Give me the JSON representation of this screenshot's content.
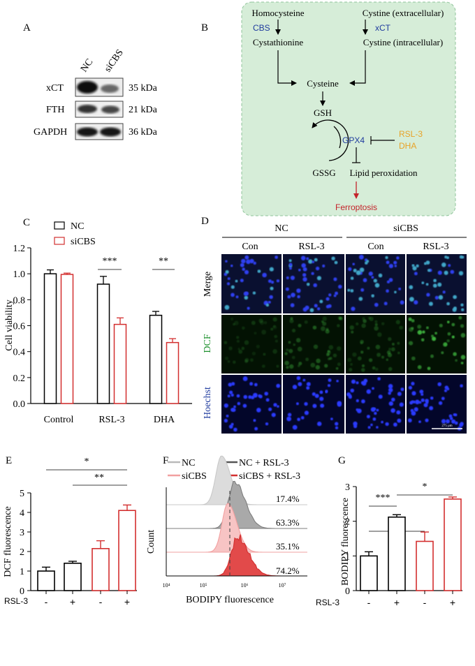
{
  "panels": {
    "A": {
      "letter": "A",
      "lanes": [
        "NC",
        "siCBS"
      ],
      "bands": [
        {
          "name": "xCT",
          "kda": "35 kDa"
        },
        {
          "name": "FTH",
          "kda": "21 kDa"
        },
        {
          "name": "GAPDH",
          "kda": "36 kDa"
        }
      ]
    },
    "B": {
      "letter": "B",
      "homocysteine": "Homocysteine",
      "cbs": "CBS",
      "cystathionine": "Cystathionine",
      "cystine_ext": "Cystine (extracellular)",
      "xct": "xCT",
      "cystine_int": "Cystine (intracellular)",
      "cysteine": "Cysteine",
      "gsh": "GSH",
      "gpx4": "GPX4",
      "rsl3": "RSL-3",
      "dha": "DHA",
      "gssg": "GSSG",
      "lipid": "Lipid peroxidation",
      "ferroptosis": "Ferroptosis",
      "colors": {
        "bg": "#d6edd8",
        "border": "#8fc49a",
        "enzyme": "#1f3b9e",
        "drug": "#e8a227",
        "ferro": "#c4242b"
      }
    },
    "C": {
      "letter": "C"
    },
    "D": {
      "letter": "D",
      "groups": [
        "NC",
        "siCBS"
      ],
      "cols": [
        "Con",
        "RSL-3",
        "Con",
        "RSL-3"
      ],
      "rows": [
        "Merge",
        "DCF",
        "Hoechst"
      ],
      "scale": "275 μm"
    },
    "E": {
      "letter": "E",
      "treat_label": "RSL-3",
      "signs": [
        "-",
        "+",
        "-",
        "+"
      ],
      "sig": [
        "*",
        "**"
      ]
    },
    "F": {
      "letter": "F",
      "legend": [
        "NC",
        "NC + RSL-3",
        "siCBS",
        "siCBS + RSL-3"
      ],
      "percents": [
        "17.4%",
        "63.3%",
        "35.1%",
        "74.2%"
      ],
      "ylabel": "Count",
      "xlabel": "BODIPY fluorescence",
      "xticks": [
        "10⁴",
        "10⁵",
        "10⁶",
        "10⁷"
      ]
    },
    "G": {
      "letter": "G",
      "treat_label": "RSL-3",
      "signs": [
        "-",
        "+",
        "-",
        "+"
      ],
      "sig": [
        "***",
        "*",
        "*"
      ]
    }
  },
  "chart_data": [
    {
      "type": "bar",
      "panel": "C",
      "categories": [
        "Control",
        "RSL-3",
        "DHA"
      ],
      "series": [
        {
          "name": "NC",
          "values": [
            1.0,
            0.92,
            0.68
          ],
          "errors": [
            0.03,
            0.06,
            0.03
          ],
          "color": "#000000"
        },
        {
          "name": "siCBS",
          "values": [
            0.995,
            0.61,
            0.47
          ],
          "errors": [
            0.01,
            0.05,
            0.03
          ],
          "color": "#d32f2f"
        }
      ],
      "ylabel": "Cell viability",
      "ylim": [
        0.0,
        1.2
      ],
      "yticks": [
        "0.0",
        "0.2",
        "0.4",
        "0.6",
        "0.8",
        "1.0",
        "1.2"
      ],
      "sig": [
        "***",
        "**"
      ]
    },
    {
      "type": "bar",
      "panel": "E",
      "categories": [
        "-",
        "+",
        "-",
        "+"
      ],
      "values": [
        1.0,
        1.4,
        2.15,
        4.1
      ],
      "errors": [
        0.2,
        0.1,
        0.4,
        0.28
      ],
      "colors": [
        "#000000",
        "#000000",
        "#d32f2f",
        "#d32f2f"
      ],
      "ylabel": "DCF fluorescence",
      "ylim": [
        0,
        5
      ],
      "yticks": [
        "0",
        "1",
        "2",
        "3",
        "4",
        "5"
      ]
    },
    {
      "type": "bar",
      "panel": "G",
      "categories": [
        "-",
        "+",
        "-",
        "+"
      ],
      "values": [
        1.0,
        2.12,
        1.42,
        2.64
      ],
      "errors": [
        0.12,
        0.07,
        0.27,
        0.06
      ],
      "colors": [
        "#000000",
        "#000000",
        "#d32f2f",
        "#d32f2f"
      ],
      "ylabel": "BODIPY fluorescence",
      "ylim": [
        0,
        3
      ],
      "yticks": [
        "0",
        "1",
        "2",
        "3"
      ]
    }
  ]
}
